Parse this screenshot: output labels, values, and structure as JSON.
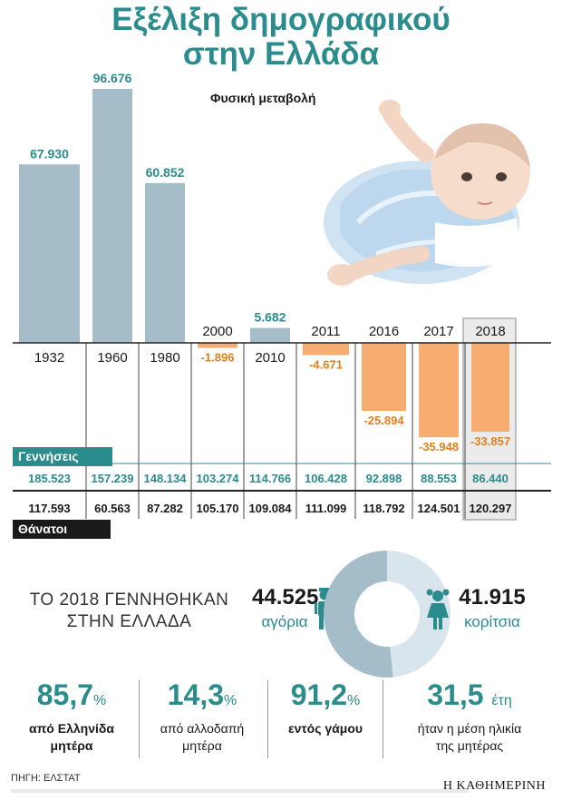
{
  "title_line1": "Εξέλιξη δημογραφικού",
  "title_line2": "στην Ελλάδα",
  "chart_data": {
    "type": "bar",
    "subtitle": "Φυσική μεταβολή",
    "categories": [
      "1932",
      "1960",
      "1980",
      "2000",
      "2010",
      "2011",
      "2016",
      "2017",
      "2018"
    ],
    "natural_change": [
      67930,
      96676,
      60852,
      -1896,
      5682,
      -4671,
      -25894,
      -35948,
      -33857
    ],
    "natural_change_labels": [
      "67.930",
      "96.676",
      "60.852",
      "-1.896",
      "5.682",
      "-4.671",
      "-25.894",
      "-35.948",
      "-33.857"
    ],
    "births": [
      "185.523",
      "157.239",
      "148.134",
      "103.274",
      "114.766",
      "106.428",
      "92.898",
      "88.553",
      "86.440"
    ],
    "deaths": [
      "117.593",
      "60.563",
      "87.282",
      "105.170",
      "109.084",
      "111.099",
      "118.792",
      "124.501",
      "120.297"
    ],
    "births_label": "Γεννήσεις",
    "deaths_label": "Θάνατοι",
    "highlight_category": "2018",
    "colors": {
      "positive": "#a5bdc9",
      "negative": "#f7ad6f",
      "accent": "#2a8c8c",
      "negative_text": "#e07f1c",
      "highlight_bg": "#ebebeb"
    }
  },
  "births_2018": {
    "headline": "ΤΟ 2018 ΓΕΝΝΗΘΗΚΑΝ ΣΤΗΝ ΕΛΛΑΔΑ",
    "boys_count": "44.525",
    "boys_label": "αγόρια",
    "girls_count": "41.915",
    "girls_label": "κορίτσια",
    "boys_share": 0.515,
    "colors": {
      "boys": "#a5bdc9",
      "girls": "#d9e5ec"
    }
  },
  "stats": [
    {
      "value": "85,7",
      "unit": "%",
      "desc1": "από Ελληνίδα",
      "desc2": "μητέρα",
      "bold": true
    },
    {
      "value": "14,3",
      "unit": "%",
      "desc1": "από αλλοδαπή",
      "desc2": "μητέρα",
      "bold": false
    },
    {
      "value": "91,2",
      "unit": "%",
      "desc1": "εντός γάμου",
      "desc2": "",
      "bold": true
    },
    {
      "value": "31,5",
      "unit": "έτη",
      "desc1": "ήταν η μέση ηλικία",
      "desc2": "της μητέρας",
      "bold": false
    }
  ],
  "footer": {
    "source": "ΠΗΓΗ: ΕΛΣΤΑΤ",
    "brand": "Η ΚΑΘΗΜΕΡΙΝΗ"
  }
}
